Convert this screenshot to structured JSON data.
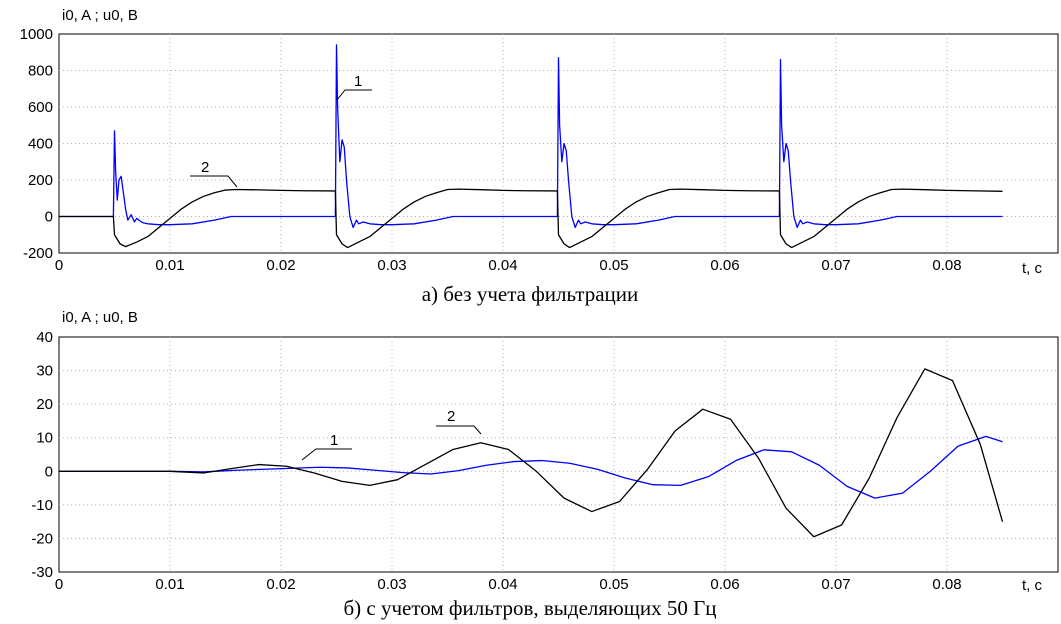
{
  "chart_data": [
    {
      "type": "line",
      "ylabel": "i0, A ; u0, B",
      "xlabel": "t, c",
      "caption": "а) без учета фильтрации",
      "xlim": [
        0,
        0.09
      ],
      "ylim": [
        -200,
        1000
      ],
      "x_ticks": [
        "0",
        "0.01",
        "0.02",
        "0.03",
        "0.04",
        "0.05",
        "0.06",
        "0.07",
        "0.08"
      ],
      "y_ticks": [
        "1000",
        "800",
        "600",
        "400",
        "200",
        "0",
        "-200"
      ],
      "grid": true,
      "annotations": [
        "1",
        "2"
      ],
      "series": [
        {
          "label": "1",
          "color": "#0000ff",
          "points": [
            [
              0,
              0
            ],
            [
              0.0049,
              0
            ],
            [
              0.005,
              470
            ],
            [
              0.0051,
              250
            ],
            [
              0.00525,
              90
            ],
            [
              0.0054,
              200
            ],
            [
              0.0056,
              220
            ],
            [
              0.0058,
              130
            ],
            [
              0.006,
              40
            ],
            [
              0.0062,
              -20
            ],
            [
              0.0065,
              10
            ],
            [
              0.0068,
              -30
            ],
            [
              0.007,
              -10
            ],
            [
              0.0073,
              -25
            ],
            [
              0.0076,
              -35
            ],
            [
              0.008,
              -40
            ],
            [
              0.009,
              -45
            ],
            [
              0.01,
              -45
            ],
            [
              0.012,
              -40
            ],
            [
              0.014,
              -20
            ],
            [
              0.0155,
              0
            ],
            [
              0.0249,
              0
            ],
            [
              0.025,
              940
            ],
            [
              0.0251,
              600
            ],
            [
              0.0253,
              300
            ],
            [
              0.0255,
              420
            ],
            [
              0.0257,
              380
            ],
            [
              0.0259,
              200
            ],
            [
              0.0262,
              0
            ],
            [
              0.0265,
              -60
            ],
            [
              0.0268,
              -20
            ],
            [
              0.027,
              -40
            ],
            [
              0.0274,
              -30
            ],
            [
              0.028,
              -40
            ],
            [
              0.029,
              -45
            ],
            [
              0.03,
              -45
            ],
            [
              0.032,
              -40
            ],
            [
              0.034,
              -20
            ],
            [
              0.0355,
              0
            ],
            [
              0.0449,
              0
            ],
            [
              0.045,
              870
            ],
            [
              0.0451,
              500
            ],
            [
              0.0453,
              300
            ],
            [
              0.0455,
              400
            ],
            [
              0.0457,
              360
            ],
            [
              0.0459,
              200
            ],
            [
              0.0462,
              0
            ],
            [
              0.0465,
              -60
            ],
            [
              0.0468,
              -20
            ],
            [
              0.047,
              -40
            ],
            [
              0.0474,
              -30
            ],
            [
              0.048,
              -40
            ],
            [
              0.049,
              -45
            ],
            [
              0.05,
              -45
            ],
            [
              0.052,
              -40
            ],
            [
              0.054,
              -20
            ],
            [
              0.0555,
              0
            ],
            [
              0.0649,
              0
            ],
            [
              0.065,
              860
            ],
            [
              0.0651,
              500
            ],
            [
              0.0653,
              300
            ],
            [
              0.0655,
              400
            ],
            [
              0.0657,
              360
            ],
            [
              0.0659,
              200
            ],
            [
              0.0662,
              0
            ],
            [
              0.0665,
              -60
            ],
            [
              0.0668,
              -20
            ],
            [
              0.067,
              -40
            ],
            [
              0.0674,
              -30
            ],
            [
              0.068,
              -40
            ],
            [
              0.069,
              -45
            ],
            [
              0.07,
              -45
            ],
            [
              0.072,
              -40
            ],
            [
              0.074,
              -20
            ],
            [
              0.0755,
              0
            ],
            [
              0.085,
              0
            ]
          ]
        },
        {
          "label": "2",
          "color": "#000000",
          "points": [
            [
              0,
              0
            ],
            [
              0.0049,
              0
            ],
            [
              0.005,
              -100
            ],
            [
              0.0055,
              -150
            ],
            [
              0.006,
              -165
            ],
            [
              0.007,
              -140
            ],
            [
              0.008,
              -110
            ],
            [
              0.009,
              -60
            ],
            [
              0.01,
              -10
            ],
            [
              0.011,
              40
            ],
            [
              0.012,
              80
            ],
            [
              0.013,
              110
            ],
            [
              0.014,
              130
            ],
            [
              0.015,
              145
            ],
            [
              0.016,
              148
            ],
            [
              0.018,
              146
            ],
            [
              0.02,
              143
            ],
            [
              0.022,
              141
            ],
            [
              0.0249,
              140
            ],
            [
              0.025,
              -100
            ],
            [
              0.0255,
              -150
            ],
            [
              0.026,
              -170
            ],
            [
              0.027,
              -140
            ],
            [
              0.028,
              -110
            ],
            [
              0.029,
              -60
            ],
            [
              0.03,
              -10
            ],
            [
              0.031,
              40
            ],
            [
              0.032,
              80
            ],
            [
              0.033,
              110
            ],
            [
              0.034,
              130
            ],
            [
              0.035,
              148
            ],
            [
              0.036,
              150
            ],
            [
              0.038,
              147
            ],
            [
              0.04,
              143
            ],
            [
              0.042,
              141
            ],
            [
              0.0449,
              140
            ],
            [
              0.045,
              -100
            ],
            [
              0.0455,
              -150
            ],
            [
              0.046,
              -170
            ],
            [
              0.047,
              -140
            ],
            [
              0.048,
              -110
            ],
            [
              0.049,
              -60
            ],
            [
              0.05,
              -10
            ],
            [
              0.051,
              40
            ],
            [
              0.052,
              80
            ],
            [
              0.053,
              110
            ],
            [
              0.054,
              130
            ],
            [
              0.055,
              148
            ],
            [
              0.056,
              150
            ],
            [
              0.058,
              147
            ],
            [
              0.06,
              143
            ],
            [
              0.062,
              141
            ],
            [
              0.0649,
              140
            ],
            [
              0.065,
              -100
            ],
            [
              0.0655,
              -150
            ],
            [
              0.066,
              -170
            ],
            [
              0.067,
              -140
            ],
            [
              0.068,
              -110
            ],
            [
              0.069,
              -60
            ],
            [
              0.07,
              -10
            ],
            [
              0.071,
              40
            ],
            [
              0.072,
              80
            ],
            [
              0.073,
              110
            ],
            [
              0.074,
              130
            ],
            [
              0.075,
              148
            ],
            [
              0.076,
              150
            ],
            [
              0.078,
              147
            ],
            [
              0.08,
              143
            ],
            [
              0.082,
              141
            ],
            [
              0.085,
              138
            ]
          ]
        }
      ]
    },
    {
      "type": "line",
      "ylabel": "i0, A ; u0, B",
      "xlabel": "t, c",
      "caption": "б) с учетом фильтров, выделяющих 50 Гц",
      "xlim": [
        0,
        0.09
      ],
      "ylim": [
        -30,
        40
      ],
      "x_ticks": [
        "0",
        "0.01",
        "0.02",
        "0.03",
        "0.04",
        "0.05",
        "0.06",
        "0.07",
        "0.08"
      ],
      "y_ticks": [
        "40",
        "30",
        "20",
        "10",
        "0",
        "-10",
        "-20",
        "-30"
      ],
      "grid": true,
      "annotations": [
        "1",
        "2"
      ],
      "series": [
        {
          "label": "1",
          "color": "#0000ff",
          "points": [
            [
              0,
              0
            ],
            [
              0.005,
              0
            ],
            [
              0.01,
              0
            ],
            [
              0.013,
              -0.2
            ],
            [
              0.016,
              0.3
            ],
            [
              0.0185,
              0.6
            ],
            [
              0.021,
              0.9
            ],
            [
              0.0235,
              1.2
            ],
            [
              0.026,
              1.0
            ],
            [
              0.0285,
              0.3
            ],
            [
              0.031,
              -0.4
            ],
            [
              0.0335,
              -0.8
            ],
            [
              0.036,
              0.2
            ],
            [
              0.0385,
              1.8
            ],
            [
              0.041,
              2.9
            ],
            [
              0.0435,
              3.2
            ],
            [
              0.046,
              2.4
            ],
            [
              0.0485,
              0.6
            ],
            [
              0.051,
              -2.0
            ],
            [
              0.0535,
              -4.0
            ],
            [
              0.056,
              -4.2
            ],
            [
              0.0585,
              -1.6
            ],
            [
              0.061,
              3.2
            ],
            [
              0.0635,
              6.4
            ],
            [
              0.066,
              5.8
            ],
            [
              0.0685,
              1.8
            ],
            [
              0.071,
              -4.5
            ],
            [
              0.0735,
              -8.0
            ],
            [
              0.076,
              -6.5
            ],
            [
              0.0785,
              0.0
            ],
            [
              0.081,
              7.5
            ],
            [
              0.0835,
              10.4
            ],
            [
              0.085,
              8.8
            ]
          ]
        },
        {
          "label": "2",
          "color": "#000000",
          "points": [
            [
              0,
              0
            ],
            [
              0.005,
              0
            ],
            [
              0.01,
              0
            ],
            [
              0.013,
              -0.5
            ],
            [
              0.0155,
              0.8
            ],
            [
              0.018,
              2.0
            ],
            [
              0.0205,
              1.5
            ],
            [
              0.023,
              -0.5
            ],
            [
              0.0255,
              -3.0
            ],
            [
              0.028,
              -4.2
            ],
            [
              0.0305,
              -2.5
            ],
            [
              0.033,
              2.0
            ],
            [
              0.0355,
              6.5
            ],
            [
              0.038,
              8.5
            ],
            [
              0.0405,
              6.5
            ],
            [
              0.043,
              0.0
            ],
            [
              0.0455,
              -8.0
            ],
            [
              0.048,
              -12.0
            ],
            [
              0.0505,
              -9.0
            ],
            [
              0.053,
              0.5
            ],
            [
              0.0555,
              12.0
            ],
            [
              0.058,
              18.5
            ],
            [
              0.0605,
              15.5
            ],
            [
              0.063,
              4.0
            ],
            [
              0.0655,
              -11.0
            ],
            [
              0.068,
              -19.5
            ],
            [
              0.0705,
              -16.0
            ],
            [
              0.073,
              -2.0
            ],
            [
              0.0755,
              16.0
            ],
            [
              0.078,
              30.5
            ],
            [
              0.0805,
              27.0
            ],
            [
              0.083,
              8.0
            ],
            [
              0.085,
              -15.0
            ]
          ]
        }
      ]
    }
  ]
}
